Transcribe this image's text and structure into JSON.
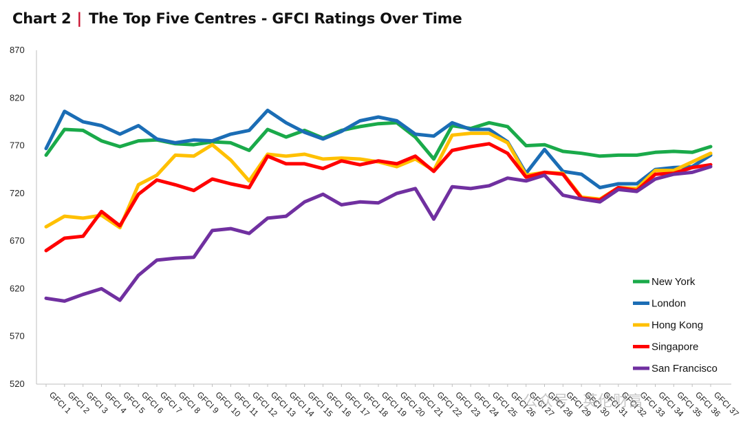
{
  "header": {
    "chart_number": "Chart 2",
    "separator": "|",
    "title": "The Top Five Centres - GFCI Ratings Over Time"
  },
  "watermark": {
    "text": "公众号 · 英伦财富"
  },
  "chart_data": {
    "type": "line",
    "title": "The Top Five Centres - GFCI Ratings Over Time",
    "xlabel": "",
    "ylabel": "",
    "ylim": [
      520,
      870
    ],
    "yticks": [
      520,
      570,
      620,
      670,
      720,
      770,
      820,
      870
    ],
    "grid": false,
    "legend_position": "right",
    "categories": [
      "GFCI 1",
      "GFCI 2",
      "GFCI 3",
      "GFCI 4",
      "GFCI 5",
      "GFCI 6",
      "GFCI 7",
      "GFCI 8",
      "GFCI 9",
      "GFCI 10",
      "GFCI 11",
      "GFCI 12",
      "GFCI 13",
      "GFCI 14",
      "GFCI 15",
      "GFCI 16",
      "GFCI 17",
      "GFCI 18",
      "GFCI 19",
      "GFCI 20",
      "GFCI 21",
      "GFCI 22",
      "GFCI 23",
      "GFCI 24",
      "GFCI 25",
      "GFCI 26",
      "GFCI 27",
      "GFCI 28",
      "GFCI 29",
      "GFCI 30",
      "GFCI 31",
      "GFCI 32",
      "GFCI 33",
      "GFCI 34",
      "GFCI 35",
      "GFCI 36",
      "GFCI 37"
    ],
    "series": [
      {
        "name": "New York",
        "color": "#1aaa4a",
        "values": [
          760,
          787,
          786,
          775,
          769,
          775,
          776,
          772,
          771,
          774,
          773,
          765,
          787,
          779,
          786,
          778,
          786,
          790,
          793,
          794,
          779,
          756,
          791,
          788,
          794,
          790,
          770,
          771,
          764,
          762,
          759,
          760,
          760,
          763,
          764,
          763,
          769
        ]
      },
      {
        "name": "London",
        "color": "#1b6db5",
        "values": [
          767,
          806,
          795,
          791,
          782,
          791,
          777,
          773,
          776,
          775,
          782,
          786,
          807,
          794,
          784,
          777,
          785,
          796,
          800,
          796,
          782,
          780,
          794,
          787,
          787,
          774,
          741,
          766,
          743,
          740,
          726,
          730,
          730,
          745,
          747,
          748,
          760
        ]
      },
      {
        "name": "Hong Kong",
        "color": "#ffc000",
        "values": [
          685,
          696,
          694,
          697,
          684,
          729,
          739,
          760,
          759,
          771,
          755,
          733,
          761,
          759,
          761,
          756,
          757,
          756,
          753,
          748,
          756,
          744,
          781,
          783,
          783,
          773,
          739,
          742,
          741,
          716,
          714,
          726,
          725,
          744,
          744,
          753,
          762
        ]
      },
      {
        "name": "Singapore",
        "color": "#ff0000",
        "values": [
          660,
          673,
          675,
          701,
          686,
          719,
          734,
          729,
          723,
          735,
          730,
          726,
          759,
          751,
          751,
          746,
          754,
          750,
          754,
          751,
          759,
          743,
          765,
          769,
          772,
          762,
          737,
          742,
          740,
          715,
          713,
          726,
          723,
          740,
          741,
          747,
          750
        ]
      },
      {
        "name": "San Francisco",
        "color": "#7030a0",
        "values": [
          610,
          607,
          614,
          620,
          608,
          634,
          650,
          652,
          653,
          681,
          683,
          678,
          694,
          696,
          711,
          719,
          708,
          711,
          710,
          720,
          725,
          693,
          727,
          725,
          728,
          736,
          733,
          739,
          718,
          714,
          711,
          724,
          722,
          735,
          740,
          742,
          748
        ]
      }
    ]
  }
}
